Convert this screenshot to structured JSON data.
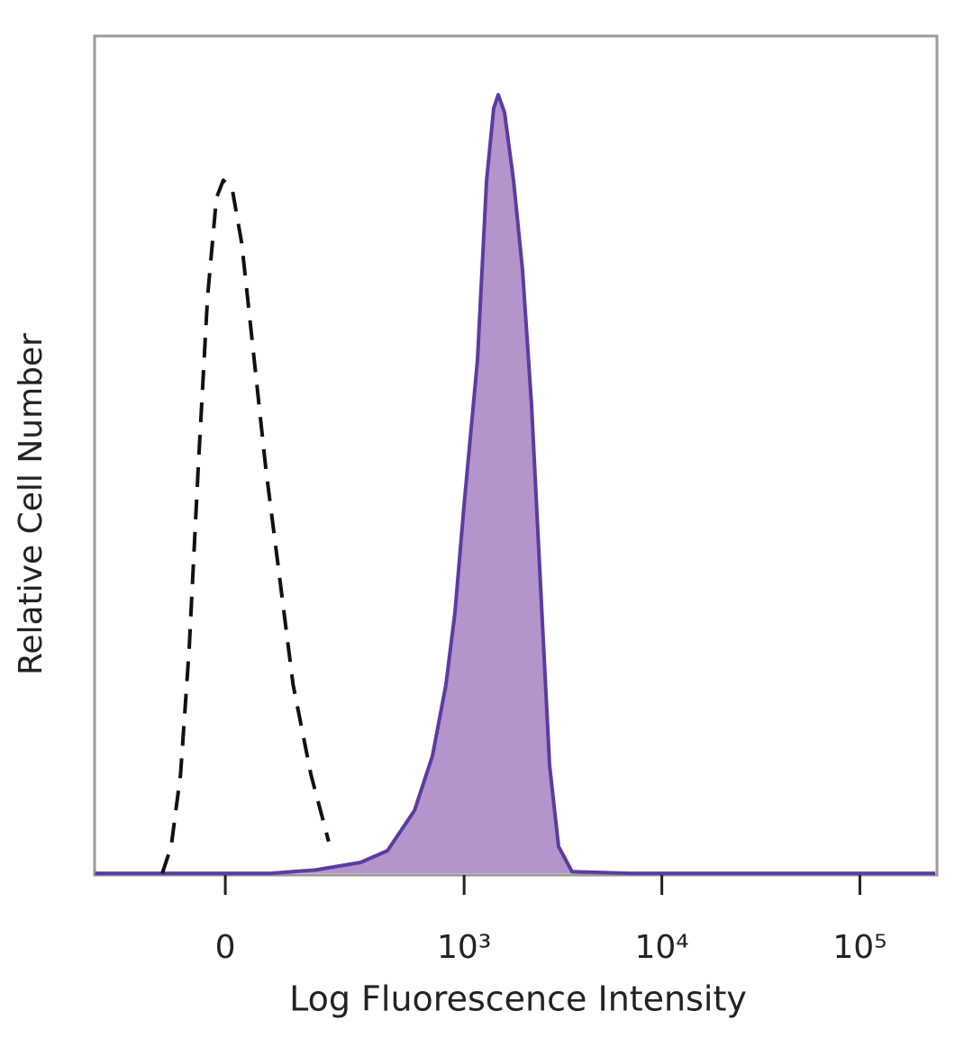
{
  "chart_data": {
    "type": "histogram-overlay",
    "x_label": "Log Fluorescence Intensity",
    "y_label": "Relative Cell Number",
    "xscale": "biexponential",
    "xlim": [
      -272,
      245000
    ],
    "ylim": [
      0,
      100
    ],
    "xticks": [
      {
        "value": 0,
        "label": "0"
      },
      {
        "value": 1000,
        "label": "10³"
      },
      {
        "value": 10000,
        "label": "10⁴"
      },
      {
        "value": 100000,
        "label": "10⁵"
      }
    ],
    "series": [
      {
        "color": "#5b3ca0",
        "fill": "#b394cb",
        "dashed": false,
        "x": [
          -270,
          68,
          156,
          288,
          402,
          557,
          689,
          808,
          898,
          1000,
          1170,
          1300,
          1413,
          1490,
          1604,
          1781,
          1978,
          2196,
          2439,
          2710,
          3009,
          3521,
          6950,
          240000
        ],
        "values": [
          0.2,
          0.2,
          0.6,
          1.5,
          2.9,
          7.7,
          14.2,
          22.7,
          31.3,
          44.2,
          61.4,
          82.8,
          91.4,
          93.0,
          90.9,
          82.8,
          72.1,
          56.0,
          34.5,
          13.1,
          3.4,
          0.4,
          0.2,
          0.2
        ]
      },
      {
        "color": "#111111",
        "fill": null,
        "dashed": true,
        "x": [
          -100,
          -84,
          -68,
          -54,
          -40,
          -26,
          -13,
          -3,
          10,
          24,
          40,
          61,
          84,
          109,
          146,
          189
        ],
        "values": [
          0.2,
          3.4,
          12.0,
          27.0,
          48.5,
          68.9,
          80.7,
          82.8,
          81.8,
          75.3,
          63.5,
          48.5,
          35.6,
          22.7,
          12.0,
          4.0
        ]
      }
    ]
  }
}
